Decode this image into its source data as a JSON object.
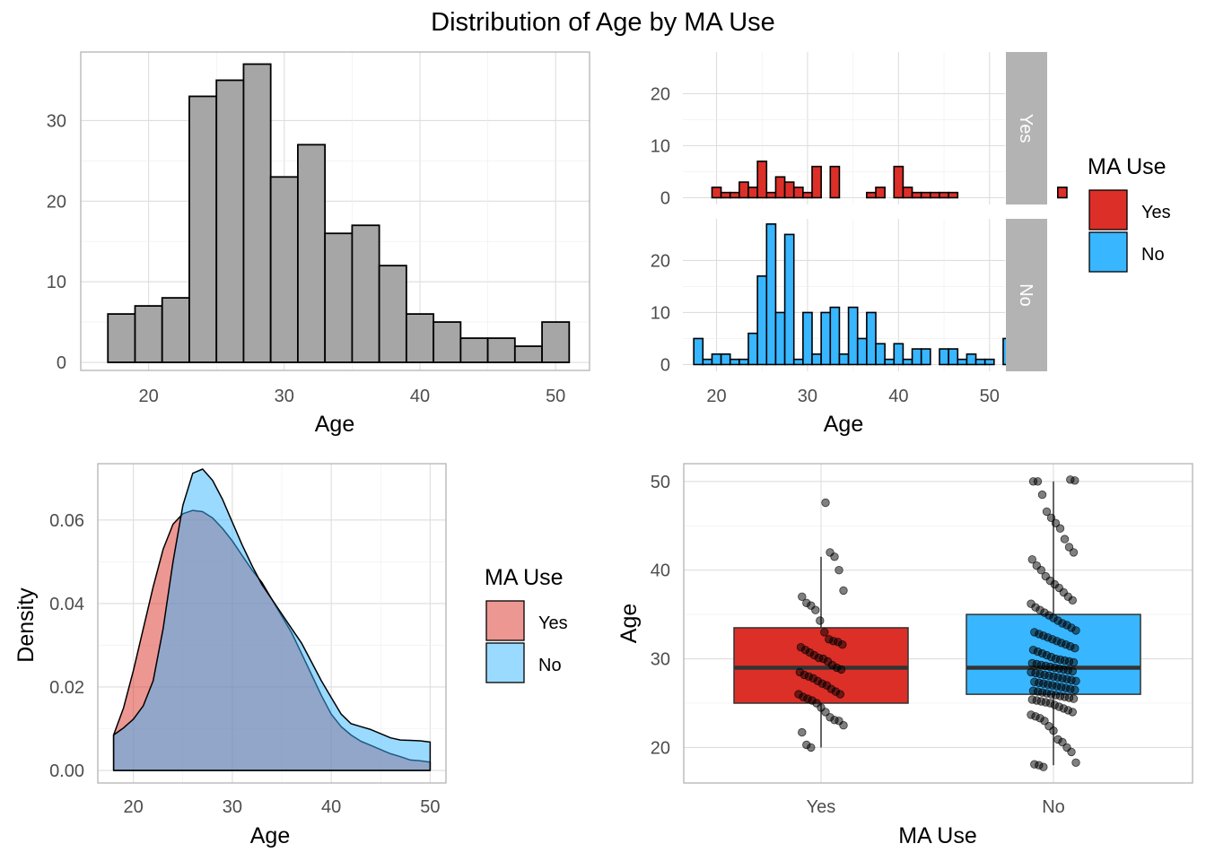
{
  "figure": {
    "title": "Distribution of Age by MA Use"
  },
  "colors": {
    "yes": "#dc2f28",
    "no": "#38b6ff",
    "gray_fill": "#a6a6a6",
    "strip": "#b3b3b3",
    "overlap": "#8fa4c4"
  },
  "chart_data": [
    {
      "id": "overall-histogram",
      "type": "bar",
      "title": "",
      "xlabel": "Age",
      "ylabel": "",
      "xlim": [
        15,
        52.5
      ],
      "ylim": [
        -1,
        38.5
      ],
      "xticks": [
        20,
        30,
        40,
        50
      ],
      "yticks": [
        0,
        10,
        20,
        30
      ],
      "grid": true,
      "bins": [
        {
          "x0": 17,
          "x1": 19,
          "count": 6
        },
        {
          "x0": 19,
          "x1": 21,
          "count": 7
        },
        {
          "x0": 21,
          "x1": 23,
          "count": 8
        },
        {
          "x0": 23,
          "x1": 25,
          "count": 33
        },
        {
          "x0": 25,
          "x1": 27,
          "count": 35
        },
        {
          "x0": 27,
          "x1": 29,
          "count": 37
        },
        {
          "x0": 29,
          "x1": 31,
          "count": 23
        },
        {
          "x0": 31,
          "x1": 33,
          "count": 27
        },
        {
          "x0": 33,
          "x1": 35,
          "count": 16
        },
        {
          "x0": 35,
          "x1": 37,
          "count": 17
        },
        {
          "x0": 37,
          "x1": 39,
          "count": 12
        },
        {
          "x0": 39,
          "x1": 41,
          "count": 6
        },
        {
          "x0": 41,
          "x1": 43,
          "count": 5
        },
        {
          "x0": 43,
          "x1": 45,
          "count": 3
        },
        {
          "x0": 45,
          "x1": 47,
          "count": 3
        },
        {
          "x0": 47,
          "x1": 49,
          "count": 2
        },
        {
          "x0": 49,
          "x1": 51,
          "count": 5
        }
      ]
    },
    {
      "id": "faceted-histogram",
      "type": "bar",
      "xlabel": "Age",
      "xlim": [
        16.3,
        51.7
      ],
      "ylim": [
        -1.3,
        28
      ],
      "xticks": [
        20,
        30,
        40,
        50
      ],
      "yticks": [
        0,
        10,
        20
      ],
      "bin_start": 17.5,
      "bin_width": 1,
      "grid": true,
      "legend": {
        "title": "MA Use",
        "position": "right",
        "entries": [
          "Yes",
          "No"
        ]
      },
      "facets": [
        {
          "label": "Yes",
          "color": "#dc2f28",
          "counts": [
            0,
            0,
            2,
            1,
            1,
            3,
            2,
            7,
            1,
            4,
            3,
            2,
            1,
            6,
            0,
            6,
            0,
            0,
            0,
            1,
            2,
            0,
            6,
            2,
            1,
            1,
            1,
            1,
            1,
            0,
            0,
            0,
            0,
            0,
            0,
            0,
            0,
            0,
            0,
            0,
            2,
            0,
            0
          ]
        },
        {
          "label": "No",
          "color": "#38b6ff",
          "counts": [
            5,
            1,
            2,
            2,
            1,
            1,
            6,
            17,
            27,
            10,
            25,
            1,
            10,
            2,
            10,
            11,
            2,
            11,
            5,
            10,
            4,
            1,
            4,
            1,
            3,
            3,
            0,
            3,
            3,
            1,
            2,
            1,
            1,
            0,
            5
          ]
        }
      ]
    },
    {
      "id": "density-plot",
      "type": "area",
      "xlabel": "Age",
      "ylabel": "Density",
      "xlim": [
        16.4,
        51.6
      ],
      "ylim": [
        -0.003,
        0.0735
      ],
      "xticks": [
        20,
        30,
        40,
        50
      ],
      "yticks": [
        0,
        0.02,
        0.04,
        0.06
      ],
      "ytick_labels": [
        "0.00",
        "0.02",
        "0.04",
        "0.06"
      ],
      "grid": true,
      "legend": {
        "title": "MA Use",
        "position": "right",
        "entries": [
          "Yes",
          "No"
        ]
      },
      "x": [
        18,
        19,
        20,
        21,
        22,
        23,
        24,
        25,
        26,
        27,
        28,
        29,
        30,
        31,
        32,
        33,
        34,
        35,
        36,
        37,
        38,
        39,
        40,
        41,
        42,
        43,
        44,
        45,
        46,
        47,
        48,
        49,
        50
      ],
      "series": [
        {
          "name": "Yes",
          "color": "#dc2f28",
          "values": [
            0.0085,
            0.015,
            0.024,
            0.034,
            0.044,
            0.053,
            0.059,
            0.0615,
            0.0623,
            0.062,
            0.0605,
            0.058,
            0.055,
            0.0515,
            0.048,
            0.045,
            0.041,
            0.037,
            0.033,
            0.028,
            0.023,
            0.018,
            0.0135,
            0.0105,
            0.0085,
            0.007,
            0.006,
            0.005,
            0.004,
            0.0033,
            0.0025,
            0.0023,
            0.002
          ]
        },
        {
          "name": "No",
          "color": "#38b6ff",
          "values": [
            0.0085,
            0.0102,
            0.0123,
            0.0155,
            0.0215,
            0.034,
            0.05,
            0.0635,
            0.0712,
            0.0722,
            0.0695,
            0.065,
            0.0595,
            0.054,
            0.049,
            0.0445,
            0.041,
            0.0375,
            0.034,
            0.0305,
            0.026,
            0.0215,
            0.0175,
            0.0135,
            0.0112,
            0.0105,
            0.0098,
            0.0088,
            0.0078,
            0.0073,
            0.0072,
            0.0071,
            0.0068
          ]
        }
      ]
    },
    {
      "id": "boxplot",
      "type": "box",
      "xlabel": "MA Use",
      "ylabel": "Age",
      "categories": [
        "Yes",
        "No"
      ],
      "ylim": [
        16,
        52
      ],
      "yticks": [
        20,
        30,
        40,
        50
      ],
      "grid": true,
      "boxes": [
        {
          "name": "Yes",
          "color": "#dc2f28",
          "q1": 25,
          "median": 29,
          "q3": 33.5,
          "whisker_low": 20,
          "whisker_high": 41.5
        },
        {
          "name": "No",
          "color": "#38b6ff",
          "q1": 26,
          "median": 29,
          "q3": 35,
          "whisker_low": 18,
          "whisker_high": 50
        }
      ],
      "points": [
        {
          "group": "Yes",
          "ages": [
            20,
            20.3,
            21.7,
            22.5,
            23,
            23.1,
            23.4,
            24,
            24.5,
            25,
            25.3,
            25.5,
            25.7,
            26,
            26,
            26.3,
            26.6,
            27,
            27.2,
            27.5,
            27.8,
            28,
            28.2,
            28.5,
            28.8,
            29,
            29.3,
            29.7,
            30,
            30.1,
            30.4,
            30.7,
            31,
            31.3,
            31.6,
            31.9,
            32,
            32.2,
            33,
            34.3,
            35.5,
            36,
            36.3,
            37,
            37.7,
            40,
            41.5,
            42,
            47.6
          ]
        },
        {
          "group": "No",
          "ages": [
            17.8,
            18,
            18.1,
            18.3,
            19.5,
            20,
            20.6,
            20.9,
            21.9,
            22.4,
            23,
            23.3,
            23.5,
            23.7,
            24,
            24.2,
            24.4,
            24.6,
            24.8,
            25,
            25.1,
            25.2,
            25.3,
            25.4,
            25.5,
            25.6,
            25.7,
            25.8,
            25.9,
            26,
            26.1,
            26.2,
            26.3,
            26.4,
            26.5,
            26.6,
            26.7,
            26.8,
            26.9,
            27,
            27.1,
            27.2,
            27.3,
            27.4,
            27.5,
            27.6,
            27.7,
            27.8,
            27.9,
            28,
            28.1,
            28.2,
            28.3,
            28.4,
            28.5,
            28.6,
            28.7,
            28.8,
            28.9,
            29,
            29.1,
            29.2,
            29.3,
            29.4,
            29.5,
            29.6,
            29.7,
            29.8,
            29.9,
            30,
            30.2,
            30.4,
            30.6,
            30.8,
            31,
            31.2,
            31.4,
            31.6,
            31.8,
            32,
            32.2,
            32.4,
            32.6,
            32.8,
            33,
            33.2,
            33.5,
            33.8,
            34,
            34.3,
            34.6,
            34.9,
            35.2,
            35.5,
            35.8,
            36.2,
            36.6,
            37,
            37.5,
            38,
            38.4,
            38.8,
            39.3,
            40,
            40.5,
            41.2,
            42,
            42.6,
            43.5,
            44.7,
            45.3,
            45.9,
            46.6,
            48.5,
            50,
            50,
            50.1,
            50.2
          ]
        }
      ]
    }
  ]
}
